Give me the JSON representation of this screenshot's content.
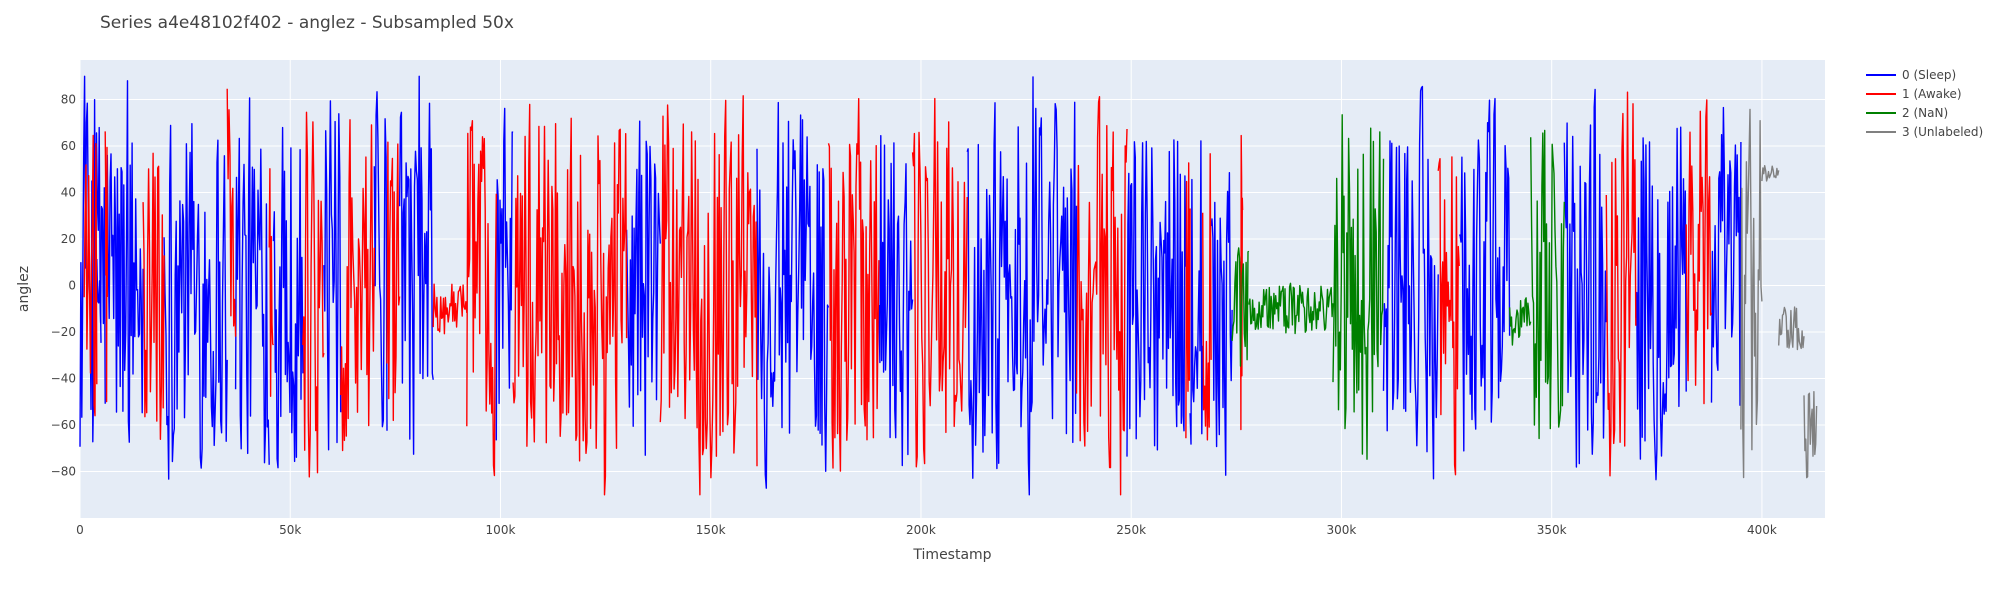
{
  "chart_data": {
    "type": "line",
    "title": "Series a4e48102f402 - anglez - Subsampled 50x",
    "xlabel": "Timestamp",
    "ylabel": "anglez",
    "xlim": [
      0,
      415000
    ],
    "ylim": [
      -100,
      97
    ],
    "x_ticks": [
      {
        "value": 0,
        "label": "0"
      },
      {
        "value": 50000,
        "label": "50k"
      },
      {
        "value": 100000,
        "label": "100k"
      },
      {
        "value": 150000,
        "label": "150k"
      },
      {
        "value": 200000,
        "label": "200k"
      },
      {
        "value": 250000,
        "label": "250k"
      },
      {
        "value": 300000,
        "label": "300k"
      },
      {
        "value": 350000,
        "label": "350k"
      },
      {
        "value": 400000,
        "label": "400k"
      }
    ],
    "y_ticks": [
      {
        "value": 80,
        "label": "80"
      },
      {
        "value": 60,
        "label": "60"
      },
      {
        "value": 40,
        "label": "40"
      },
      {
        "value": 20,
        "label": "20"
      },
      {
        "value": 0,
        "label": "0"
      },
      {
        "value": -20,
        "label": "−20"
      },
      {
        "value": -40,
        "label": "−40"
      },
      {
        "value": -60,
        "label": "−60"
      },
      {
        "value": -80,
        "label": "−80"
      }
    ],
    "grid": true,
    "legend_position": "top-right",
    "colors": {
      "plot_bg": "#e5ecf6",
      "grid": "#ffffff",
      "text": "#444444"
    },
    "series": [
      {
        "name": "0 (Sleep)",
        "color": "#0000ff",
        "segments": [
          [
            0,
            5000
          ],
          [
            4000,
            6000
          ],
          [
            6500,
            15000
          ],
          [
            20000,
            35000
          ],
          [
            37000,
            45000
          ],
          [
            46000,
            53000
          ],
          [
            58000,
            62000
          ],
          [
            70000,
            73000
          ],
          [
            76000,
            84000
          ],
          [
            99000,
            103000
          ],
          [
            130000,
            138000
          ],
          [
            161000,
            178000
          ],
          [
            190000,
            198000
          ],
          [
            211000,
            237000
          ],
          [
            249000,
            263000
          ],
          [
            264000,
            267000
          ],
          [
            269000,
            274000
          ],
          [
            310000,
            323000
          ],
          [
            328000,
            340000
          ],
          [
            353000,
            363000
          ],
          [
            370000,
            382000
          ],
          [
            388000,
            395000
          ]
        ],
        "style": [
          [
            "wild",
            0,
            0
          ],
          [
            "wild",
            0,
            0
          ],
          [
            "wild",
            0,
            0
          ],
          [
            "wild",
            0,
            0
          ],
          [
            "wild",
            0,
            0
          ],
          [
            "wild",
            0,
            0
          ],
          [
            "wild",
            0,
            0
          ],
          [
            "wild",
            0,
            0
          ],
          [
            "wild",
            0,
            0
          ],
          [
            "wild",
            0,
            0
          ],
          [
            "wild",
            0,
            0
          ],
          [
            "wild",
            0,
            0
          ],
          [
            "wild",
            0,
            0
          ],
          [
            "wild",
            0,
            0
          ],
          [
            "wild",
            0,
            0
          ],
          [
            "wild",
            0,
            0
          ],
          [
            "wild",
            0,
            0
          ],
          [
            "wild",
            0,
            0
          ],
          [
            "wild",
            0,
            0
          ],
          [
            "wild",
            0,
            0
          ],
          [
            "wild",
            0,
            0
          ],
          [
            "wild",
            0,
            0
          ]
        ]
      },
      {
        "name": "1 (Awake)",
        "color": "#ff0000",
        "segments": [
          [
            1000,
            4000
          ],
          [
            6000,
            6500
          ],
          [
            15000,
            20000
          ],
          [
            35000,
            37000
          ],
          [
            45000,
            46000
          ],
          [
            53000,
            58000
          ],
          [
            62000,
            70000
          ],
          [
            73000,
            76000
          ],
          [
            84000,
            92000
          ],
          [
            92000,
            99000
          ],
          [
            103000,
            130000
          ],
          [
            138000,
            161000
          ],
          [
            178000,
            190000
          ],
          [
            198000,
            211000
          ],
          [
            237000,
            249000
          ],
          [
            263000,
            264000
          ],
          [
            267000,
            269000
          ],
          [
            276000,
            276500
          ],
          [
            323000,
            328000
          ],
          [
            363000,
            370000
          ],
          [
            382000,
            388000
          ]
        ],
        "style": [
          [
            "wild",
            0,
            0
          ],
          [
            "wild",
            0,
            0
          ],
          [
            "wild",
            0,
            0
          ],
          [
            "wild",
            0,
            0
          ],
          [
            "wild",
            0,
            0
          ],
          [
            "wild",
            0,
            0
          ],
          [
            "wild",
            0,
            0
          ],
          [
            "wild",
            0,
            0
          ],
          [
            "calm",
            -10,
            0
          ],
          [
            "wild",
            0,
            0
          ],
          [
            "wild",
            0,
            0
          ],
          [
            "wild",
            0,
            0
          ],
          [
            "wild",
            0,
            0
          ],
          [
            "wild",
            0,
            0
          ],
          [
            "wild",
            0,
            0
          ],
          [
            "wild",
            0,
            0
          ],
          [
            "wild",
            0,
            0
          ],
          [
            "wild",
            0,
            0
          ],
          [
            "wild",
            0,
            0
          ],
          [
            "wild",
            0,
            0
          ],
          [
            "wild",
            0,
            0
          ]
        ]
      },
      {
        "name": "2 (NaN)",
        "color": "#008000",
        "segments": [
          [
            274000,
            278000
          ],
          [
            278000,
            298000
          ],
          [
            298000,
            310000
          ],
          [
            340000,
            345000
          ],
          [
            345000,
            353000
          ]
        ],
        "style": [
          [
            "mid",
            0,
            0
          ],
          [
            "calm",
            -10,
            0
          ],
          [
            "wild",
            0,
            0
          ],
          [
            "calm",
            -15,
            0
          ],
          [
            "wild",
            0,
            0
          ]
        ]
      },
      {
        "name": "3 (Unlabeled)",
        "color": "#808080",
        "segments": [
          [
            395000,
            400000
          ],
          [
            400000,
            404000
          ],
          [
            404000,
            410000
          ],
          [
            410000,
            413000
          ]
        ],
        "style": [
          [
            "wild",
            0,
            0
          ],
          [
            "plateau",
            48,
            0
          ],
          [
            "calm",
            -20,
            0
          ],
          [
            "tail",
            -65,
            0
          ]
        ]
      }
    ]
  }
}
